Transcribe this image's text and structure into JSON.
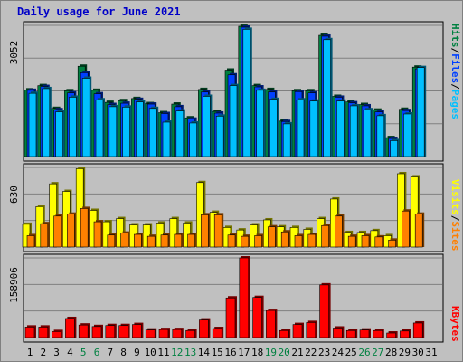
{
  "page": {
    "title": "Daily usage for June 2021"
  },
  "colors": {
    "background": "#c0c0c0",
    "hits": "#008040",
    "files": "#0040ff",
    "pages": "#00c0ff",
    "visits": "#ffff00",
    "sites": "#ff8000",
    "kbytes": "#ff0000",
    "title": "#0000c8",
    "weekend_day": "#008040"
  },
  "chart_data": [
    {
      "type": "bar",
      "panel": "hits-files-pages",
      "categories": [
        "1",
        "2",
        "3",
        "4",
        "5",
        "6",
        "7",
        "8",
        "9",
        "10",
        "11",
        "12",
        "13",
        "14",
        "15",
        "16",
        "17",
        "18",
        "19",
        "20",
        "21",
        "22",
        "23",
        "24",
        "25",
        "26",
        "27",
        "28",
        "29",
        "30",
        "31"
      ],
      "weekend_days": [
        "5",
        "6",
        "12",
        "13",
        "19",
        "20",
        "26",
        "27"
      ],
      "max_label": "3052",
      "ylim": [
        0,
        3052
      ],
      "legend": [
        "Hits",
        "Files",
        "Pages"
      ],
      "legend_separator": "/",
      "series": [
        {
          "name": "Hits",
          "values": [
            1550,
            1650,
            1120,
            1530,
            2100,
            1540,
            1260,
            1300,
            1350,
            1230,
            1020,
            1220,
            900,
            1560,
            1050,
            2010,
            3030,
            1650,
            1560,
            825,
            1530,
            1530,
            2820,
            1400,
            1270,
            1210,
            1080,
            440,
            1100,
            2080,
            0
          ]
        },
        {
          "name": "Files",
          "values": [
            1540,
            1630,
            1090,
            1480,
            1950,
            1460,
            1210,
            1240,
            1330,
            1220,
            1000,
            1160,
            870,
            1500,
            1010,
            1900,
            3010,
            1620,
            1500,
            815,
            1510,
            1480,
            2800,
            1380,
            1250,
            1180,
            1040,
            420,
            1070,
            2040,
            0
          ]
        },
        {
          "name": "Pages",
          "values": [
            1470,
            1580,
            1040,
            1380,
            1820,
            1320,
            1160,
            1150,
            1270,
            1120,
            800,
            1060,
            780,
            1400,
            940,
            1650,
            2960,
            1540,
            1330,
            760,
            1320,
            1290,
            2720,
            1290,
            1180,
            1090,
            950,
            370,
            990,
            2070,
            0
          ]
        }
      ]
    },
    {
      "type": "bar",
      "panel": "visits-sites",
      "categories": [
        "1",
        "2",
        "3",
        "4",
        "5",
        "6",
        "7",
        "8",
        "9",
        "10",
        "11",
        "12",
        "13",
        "14",
        "15",
        "16",
        "17",
        "18",
        "19",
        "20",
        "21",
        "22",
        "23",
        "24",
        "25",
        "26",
        "27",
        "28",
        "29",
        "30",
        "31"
      ],
      "max_label": "630",
      "ylim": [
        0,
        630
      ],
      "legend": [
        "Visits",
        "Sites"
      ],
      "legend_separator": "/",
      "series": [
        {
          "name": "Visits",
          "values": [
            180,
            320,
            500,
            440,
            620,
            290,
            200,
            225,
            175,
            175,
            190,
            225,
            190,
            510,
            275,
            155,
            135,
            175,
            215,
            160,
            155,
            140,
            225,
            380,
            115,
            115,
            130,
            90,
            580,
            555,
            0
          ]
        },
        {
          "name": "Sites",
          "values": [
            90,
            185,
            245,
            260,
            305,
            200,
            95,
            110,
            100,
            85,
            95,
            100,
            100,
            255,
            255,
            95,
            85,
            90,
            160,
            120,
            90,
            100,
            170,
            245,
            85,
            90,
            80,
            55,
            285,
            260,
            0
          ]
        }
      ]
    },
    {
      "type": "bar",
      "panel": "kbytes",
      "categories": [
        "1",
        "2",
        "3",
        "4",
        "5",
        "6",
        "7",
        "8",
        "9",
        "10",
        "11",
        "12",
        "13",
        "14",
        "15",
        "16",
        "17",
        "18",
        "19",
        "20",
        "21",
        "22",
        "23",
        "24",
        "25",
        "26",
        "27",
        "28",
        "29",
        "30",
        "31"
      ],
      "max_label": "158906",
      "ylim": [
        0,
        158906
      ],
      "legend": [
        "KBytes"
      ],
      "series": [
        {
          "name": "KBytes",
          "values": [
            21000,
            21000,
            12000,
            38000,
            25000,
            22000,
            24000,
            24000,
            26000,
            15000,
            16000,
            16000,
            14000,
            35000,
            18000,
            79000,
            158906,
            80000,
            54000,
            14000,
            26000,
            30000,
            105000,
            19000,
            14000,
            15000,
            14000,
            9000,
            13000,
            29000,
            0
          ]
        }
      ]
    }
  ]
}
